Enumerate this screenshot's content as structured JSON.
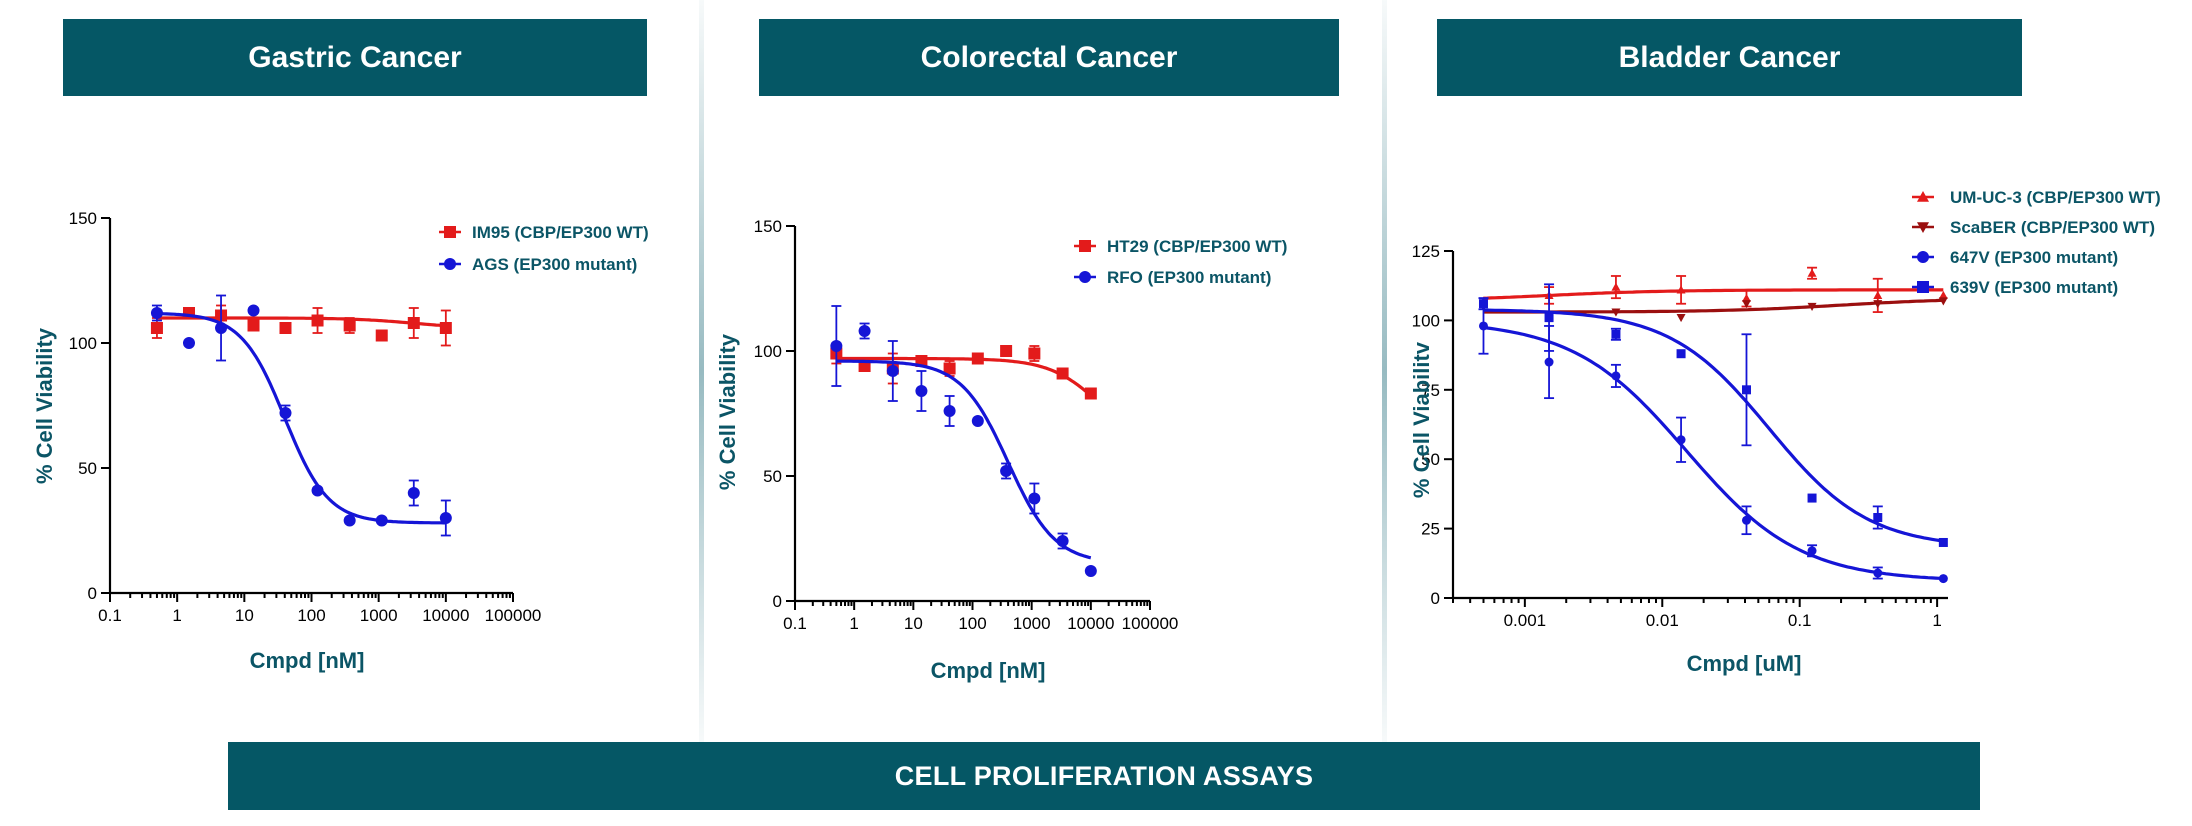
{
  "footer_title": "CELL PROLIFERATION ASSAYS",
  "colors": {
    "header_bg": "#055765",
    "axis_title": "#0b5566",
    "red": "#e31b1b",
    "blue": "#1515d6",
    "dark_red": "#9b0f0f"
  },
  "chart_data": [
    {
      "id": "gastric",
      "type": "scatter",
      "title": "Gastric Cancer",
      "xlabel": "Cmpd [nM]",
      "ylabel": "% Cell Viability",
      "xscale": "log",
      "xlim": [
        0.1,
        100000
      ],
      "ylim": [
        0,
        150
      ],
      "xticks": [
        0.1,
        1,
        10,
        100,
        1000,
        10000,
        100000
      ],
      "xtick_labels": [
        "0.1",
        "1",
        "10",
        "100",
        "1000",
        "10000",
        "100000"
      ],
      "yticks": [
        0,
        50,
        100,
        150
      ],
      "ytick_labels": [
        "0",
        "50",
        "100",
        "150"
      ],
      "legend_position": "top-right",
      "series": [
        {
          "name": "IM95 (CBP/EP300 WT)",
          "color": "#e31b1b",
          "marker": "square",
          "x": [
            0.5,
            1.5,
            4.5,
            13.7,
            41,
            123,
            370,
            1111,
            3333,
            10000
          ],
          "y": [
            106,
            112,
            111,
            107,
            106,
            109,
            107,
            103,
            108,
            106
          ],
          "err": [
            4,
            2,
            4,
            0,
            2,
            5,
            3,
            2,
            6,
            7
          ],
          "fit": {
            "top": 110,
            "bottom": 106,
            "ec50": 3000,
            "hill": 1
          }
        },
        {
          "name": "AGS (EP300 mutant)",
          "color": "#1515d6",
          "marker": "circle",
          "x": [
            0.5,
            1.5,
            4.5,
            13.7,
            41,
            123,
            370,
            1111,
            3333,
            10000
          ],
          "y": [
            112,
            100,
            106,
            113,
            72,
            41,
            29,
            29,
            40,
            30
          ],
          "err": [
            3,
            0,
            13,
            0,
            3,
            0,
            0,
            0,
            5,
            7
          ],
          "fit": {
            "top": 112,
            "bottom": 28,
            "ec50": 40,
            "hill": 1.35
          }
        }
      ]
    },
    {
      "id": "colorectal",
      "type": "scatter",
      "title": "Colorectal Cancer",
      "xlabel": "Cmpd [nM]",
      "ylabel": "% Cell Viability",
      "xscale": "log",
      "xlim": [
        0.1,
        100000
      ],
      "ylim": [
        0,
        150
      ],
      "xticks": [
        0.1,
        1,
        10,
        100,
        1000,
        10000,
        100000
      ],
      "xtick_labels": [
        "0.1",
        "1",
        "10",
        "100",
        "1000",
        "10000",
        "100000"
      ],
      "yticks": [
        0,
        50,
        100,
        150
      ],
      "ytick_labels": [
        "0",
        "50",
        "100",
        "150"
      ],
      "legend_position": "top-right",
      "series": [
        {
          "name": "HT29 (CBP/EP300 WT)",
          "color": "#e31b1b",
          "marker": "square",
          "x": [
            0.5,
            1.5,
            4.5,
            13.7,
            41,
            123,
            370,
            1111,
            3333,
            10000
          ],
          "y": [
            99,
            94,
            93,
            96,
            93,
            97,
            100,
            99,
            91,
            83
          ],
          "err": [
            4,
            0,
            6,
            0,
            3,
            0,
            2,
            3,
            2,
            2
          ],
          "fit": {
            "top": 97,
            "bottom": 60,
            "ec50": 15000,
            "hill": 1
          }
        },
        {
          "name": "RFO (EP300 mutant)",
          "color": "#1515d6",
          "marker": "circle",
          "x": [
            0.5,
            1.5,
            4.5,
            13.7,
            41,
            123,
            370,
            1111,
            3333,
            10000
          ],
          "y": [
            102,
            108,
            92,
            84,
            76,
            72,
            52,
            41,
            24,
            12
          ],
          "err": [
            16,
            3,
            12,
            8,
            6,
            0,
            3,
            6,
            3,
            0
          ],
          "fit": {
            "top": 96,
            "bottom": 15,
            "ec50": 400,
            "hill": 1.1
          }
        }
      ]
    },
    {
      "id": "bladder",
      "type": "scatter",
      "title": "Bladder Cancer",
      "xlabel": "Cmpd [uM]",
      "ylabel": "% Cell Viabilitv",
      "xscale": "log",
      "xlim": [
        0.0003,
        1.2
      ],
      "ylim": [
        0,
        125
      ],
      "xticks": [
        0.001,
        0.01,
        0.1,
        1
      ],
      "xtick_labels": [
        "0.001",
        "0.01",
        "0.1",
        "1"
      ],
      "yticks": [
        0,
        25,
        50,
        75,
        100,
        125
      ],
      "ytick_labels": [
        "0",
        "25",
        "50",
        "75",
        "100",
        "125"
      ],
      "legend_position": "top-right",
      "series": [
        {
          "name": "UM-UC-3 (CBP/EP300 WT)",
          "color": "#e31b1b",
          "marker": "triangle-up",
          "x": [
            0.0005,
            0.0015,
            0.0046,
            0.0137,
            0.041,
            0.123,
            0.37,
            1.11
          ],
          "y": [
            107,
            109,
            112,
            111,
            108,
            117,
            109,
            109
          ],
          "err": [
            0,
            3,
            4,
            5,
            3,
            2,
            6,
            0
          ],
          "fit": {
            "top": 107,
            "bottom": 111,
            "ec50": 0.0015,
            "hill": 1
          }
        },
        {
          "name": "ScaBER (CBP/EP300 WT)",
          "color": "#9b0f0f",
          "marker": "triangle-down",
          "x": [
            0.0005,
            0.0015,
            0.0046,
            0.0137,
            0.041,
            0.123,
            0.37,
            1.11
          ],
          "y": [
            105,
            102,
            103,
            101,
            106,
            105,
            106,
            107
          ],
          "err": [
            0,
            0,
            0,
            0,
            0,
            0,
            0,
            0
          ],
          "fit": {
            "top": 103,
            "bottom": 108,
            "ec50": 0.2,
            "hill": 1
          }
        },
        {
          "name": "647V (EP300 mutant)",
          "color": "#1515d6",
          "marker": "circle",
          "x": [
            0.0005,
            0.0015,
            0.0046,
            0.0137,
            0.041,
            0.123,
            0.37,
            1.11
          ],
          "y": [
            98,
            85,
            80,
            57,
            28,
            17,
            9,
            7
          ],
          "err": [
            10,
            13,
            4,
            8,
            5,
            2,
            2,
            0
          ],
          "fit": {
            "top": 100,
            "bottom": 6,
            "ec50": 0.015,
            "hill": 1.05
          }
        },
        {
          "name": "639V (EP300 mutant)",
          "color": "#1515d6",
          "marker": "square",
          "x": [
            0.0005,
            0.0015,
            0.0046,
            0.0137,
            0.041,
            0.123,
            0.37,
            1.11
          ],
          "y": [
            106,
            101,
            95,
            88,
            75,
            36,
            29,
            20
          ],
          "err": [
            2,
            12,
            2,
            0,
            20,
            0,
            4,
            0
          ],
          "fit": {
            "top": 104,
            "bottom": 18,
            "ec50": 0.06,
            "hill": 1.2
          }
        }
      ]
    }
  ]
}
